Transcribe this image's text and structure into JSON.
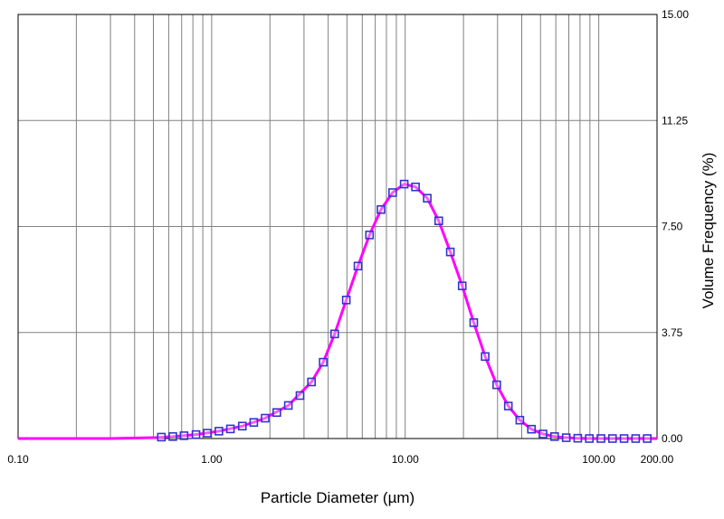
{
  "chart_data": {
    "type": "line",
    "title": "",
    "xlabel": "Particle Diameter (µm)",
    "ylabel": "Volume Frequency (%)",
    "x_scale": "log",
    "xlim": [
      0.1,
      200
    ],
    "ylim": [
      0,
      15
    ],
    "grid": true,
    "y_axis_side": "right",
    "x_tick_labels": [
      {
        "value": 0.1,
        "label": "0.10"
      },
      {
        "value": 1,
        "label": "1.00"
      },
      {
        "value": 10,
        "label": "10.00"
      },
      {
        "value": 100,
        "label": "100.00"
      },
      {
        "value": 200,
        "label": "200.00"
      }
    ],
    "y_tick_labels": [
      {
        "value": 0,
        "label": "0.00"
      },
      {
        "value": 3.75,
        "label": "3.75"
      },
      {
        "value": 7.5,
        "label": "7.50"
      },
      {
        "value": 11.25,
        "label": "11.25"
      },
      {
        "value": 15,
        "label": "15.00"
      }
    ],
    "colors": {
      "fit_line": "#ff00ff",
      "markers": "#3333cc",
      "grid": "#808080"
    },
    "series": [
      {
        "style": "markers",
        "marker": "square",
        "x": [
          0.55,
          0.63,
          0.72,
          0.83,
          0.95,
          1.09,
          1.25,
          1.44,
          1.65,
          1.89,
          2.17,
          2.49,
          2.86,
          3.28,
          3.77,
          4.32,
          4.96,
          5.7,
          6.54,
          7.5,
          8.61,
          9.88,
          11.3,
          13.0,
          14.9,
          17.1,
          19.7,
          22.6,
          25.9,
          29.7,
          34.1,
          39.1,
          44.9,
          51.5,
          59.1,
          67.9,
          77.9,
          89.4,
          102.6,
          117.7,
          135.1,
          155.1,
          178.0
        ],
        "y": [
          0.05,
          0.07,
          0.1,
          0.14,
          0.19,
          0.26,
          0.34,
          0.44,
          0.57,
          0.72,
          0.92,
          1.17,
          1.52,
          2.0,
          2.7,
          3.7,
          4.9,
          6.1,
          7.2,
          8.1,
          8.7,
          9.0,
          8.9,
          8.5,
          7.7,
          6.6,
          5.4,
          4.1,
          2.9,
          1.9,
          1.15,
          0.65,
          0.33,
          0.16,
          0.07,
          0.03,
          0.01,
          0.0,
          0.0,
          0.0,
          0.0,
          0.0,
          0.0
        ]
      },
      {
        "style": "line",
        "x": [
          0.1,
          0.3,
          0.5,
          0.63,
          0.83,
          1.09,
          1.44,
          1.89,
          2.49,
          3.28,
          3.77,
          4.32,
          4.96,
          5.7,
          6.54,
          7.5,
          8.61,
          9.88,
          11.3,
          13.0,
          14.9,
          17.1,
          19.7,
          22.6,
          25.9,
          29.7,
          34.1,
          39.1,
          44.9,
          51.5,
          59.1,
          67.9,
          77.9,
          89.4,
          102.6,
          200.0
        ],
        "y": [
          0.0,
          0.0,
          0.03,
          0.07,
          0.14,
          0.26,
          0.44,
          0.72,
          1.17,
          2.0,
          2.7,
          3.7,
          4.9,
          6.1,
          7.2,
          8.1,
          8.7,
          9.0,
          8.9,
          8.5,
          7.7,
          6.6,
          5.4,
          4.1,
          2.9,
          1.9,
          1.15,
          0.65,
          0.33,
          0.16,
          0.07,
          0.03,
          0.01,
          0.0,
          0.0,
          0.0
        ]
      }
    ]
  }
}
